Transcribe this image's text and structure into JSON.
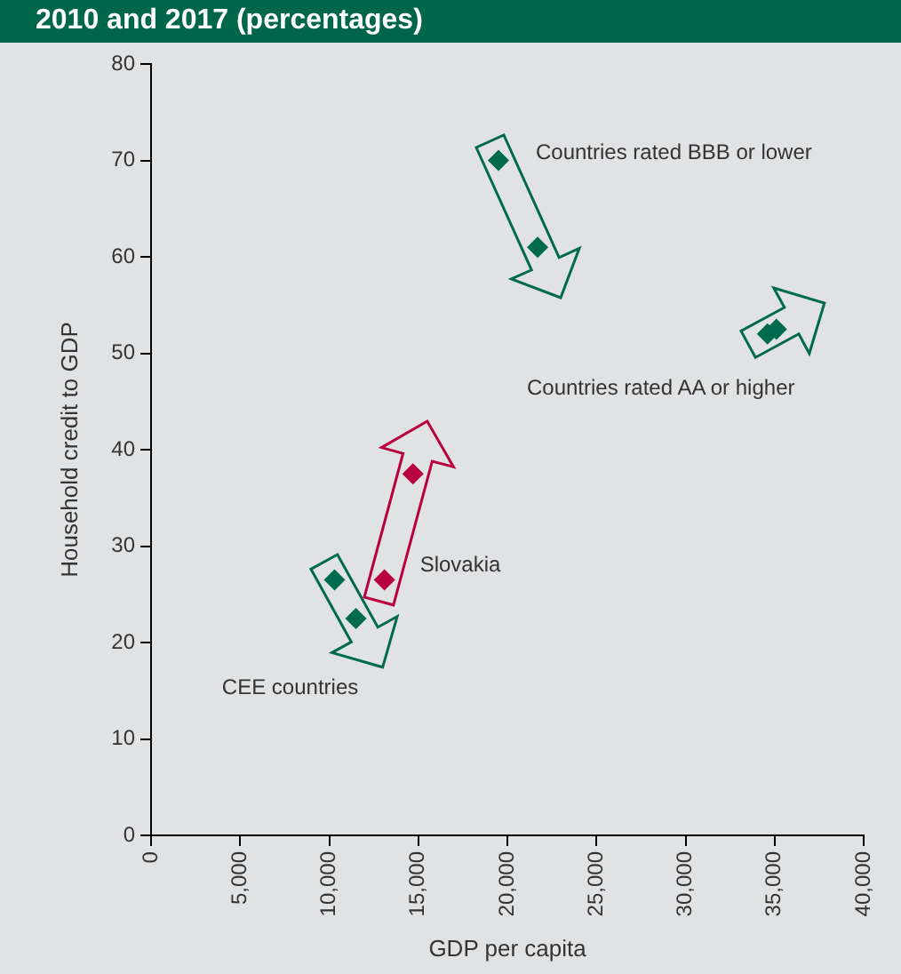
{
  "chart_data": {
    "type": "scatter",
    "title": "2010 and 2017 (percentages)",
    "xlabel": "GDP per capita",
    "ylabel": "Household credit to GDP",
    "series": [
      {
        "name": "Countries rated BBB or lower",
        "color": "#006a4d",
        "x": [
          19500,
          21700
        ],
        "values": [
          70,
          61
        ]
      },
      {
        "name": "Countries rated AA or higher",
        "color": "#006a4d",
        "x": [
          34600,
          35100
        ],
        "values": [
          52,
          52.5
        ]
      },
      {
        "name": "CEE countries",
        "color": "#006a4d",
        "x": [
          10300,
          11500
        ],
        "values": [
          26.5,
          22.5
        ]
      },
      {
        "name": "Slovakia",
        "color": "#b8003f",
        "x": [
          13100,
          14700
        ],
        "values": [
          26.5,
          37.5
        ]
      }
    ],
    "xlim": [
      0,
      40000
    ],
    "xticks": [
      0,
      {
        "value": 5000,
        "label": "5,000"
      },
      {
        "value": 10000,
        "label": "10,000"
      },
      {
        "value": 15000,
        "label": "15,000"
      },
      {
        "value": 20000,
        "label": "20,000"
      },
      {
        "value": 25000,
        "label": "25,000"
      },
      {
        "value": 30000,
        "label": "30,000"
      },
      {
        "value": 35000,
        "label": "35,000"
      },
      {
        "value": 40000,
        "label": "40,000"
      }
    ],
    "ylim": [
      0,
      80
    ],
    "yticks": [
      0,
      10,
      20,
      30,
      40,
      50,
      60,
      70,
      80
    ],
    "marker": "diamond"
  }
}
